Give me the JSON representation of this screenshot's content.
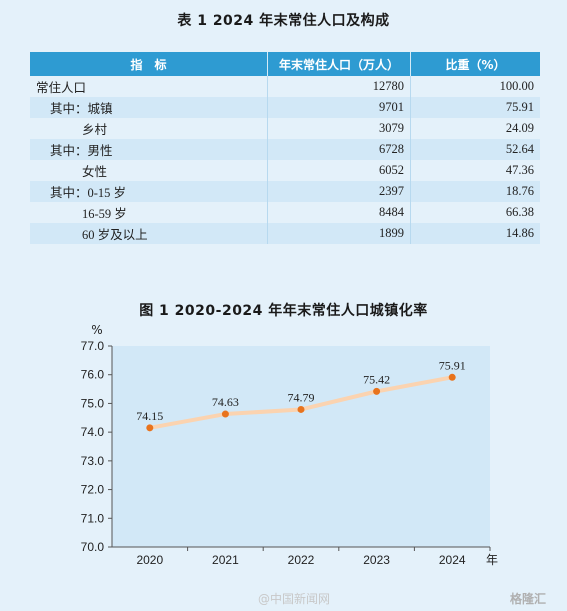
{
  "table_title": "表 1  2024 年末常住人口及构成",
  "table": {
    "headers": [
      "指　标",
      "年末常住人口（万人）",
      "比重（%）"
    ],
    "rows": [
      {
        "label": "常住人口",
        "population": "12780",
        "share": "100.00",
        "indent": 0
      },
      {
        "label": "其中：城镇",
        "population": "9701",
        "share": "75.91",
        "indent": 1
      },
      {
        "label": "乡村",
        "population": "3079",
        "share": "24.09",
        "indent": 2
      },
      {
        "label": "其中：男性",
        "population": "6728",
        "share": "52.64",
        "indent": 1
      },
      {
        "label": "女性",
        "population": "6052",
        "share": "47.36",
        "indent": 2
      },
      {
        "label": "其中：0-15 岁",
        "population": "2397",
        "share": "18.76",
        "indent": 1
      },
      {
        "label": "16-59 岁",
        "population": "8484",
        "share": "66.38",
        "indent": 2
      },
      {
        "label": "60 岁及以上",
        "population": "1899",
        "share": "14.86",
        "indent": 2
      }
    ]
  },
  "chart_title": "图 1  2020-2024 年年末常住人口城镇化率",
  "chart_data": {
    "type": "line",
    "title": "图 1  2020-2024 年年末常住人口城镇化率",
    "xlabel": "年",
    "ylabel": "%",
    "x": [
      "2020",
      "2021",
      "2022",
      "2023",
      "2024"
    ],
    "series": [
      {
        "values": [
          74.15,
          74.63,
          74.79,
          75.42,
          75.91
        ]
      }
    ],
    "value_labels": [
      "74.15",
      "74.63",
      "74.79",
      "75.42",
      "75.91"
    ],
    "yticks": [
      "70.0",
      "71.0",
      "72.0",
      "73.0",
      "74.0",
      "75.0",
      "76.0",
      "77.0"
    ],
    "ylim": [
      70.0,
      77.0
    ],
    "grid": false,
    "colors": {
      "line": "#fbd3b0",
      "marker": "#e8731d",
      "plot_bg": "#d2e8f7"
    }
  },
  "watermarks": {
    "weibo": "@中国新闻网",
    "brand": "格隆汇"
  }
}
